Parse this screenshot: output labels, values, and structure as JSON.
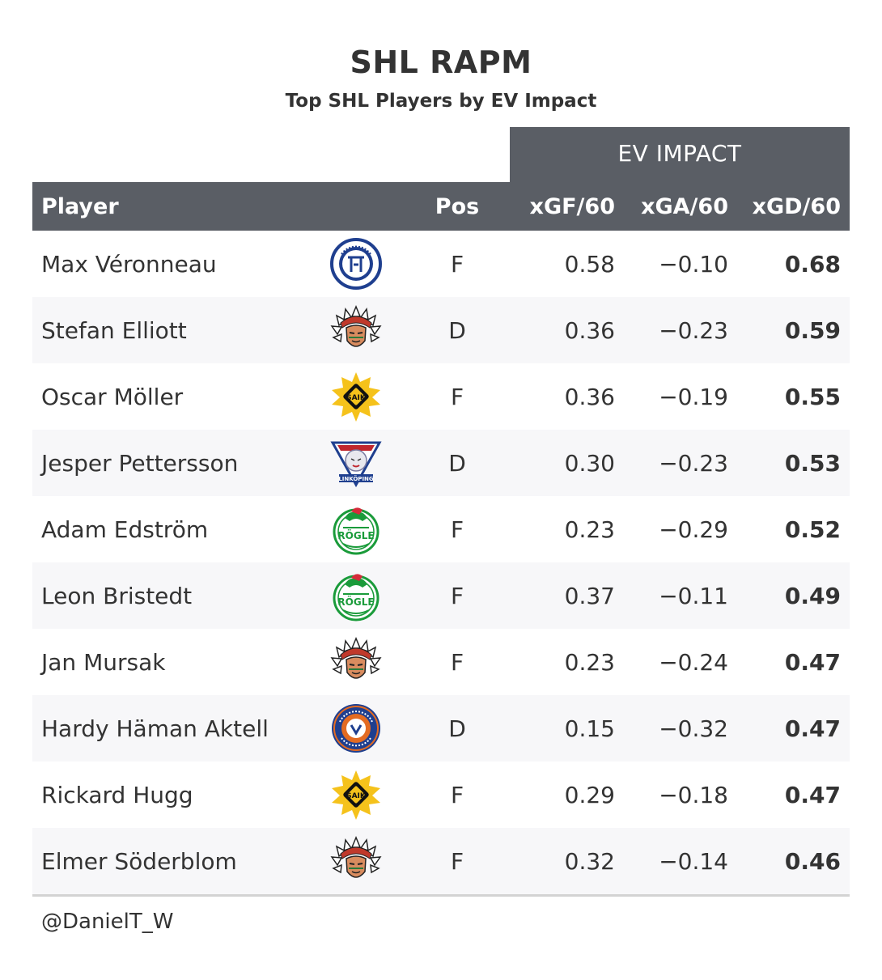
{
  "title": "SHL RAPM",
  "subtitle": "Top SHL Players by EV Impact",
  "spanner_label": "EV IMPACT",
  "columns": {
    "player": "Player",
    "pos": "Pos",
    "xgf": "xGF/60",
    "xga": "xGA/60",
    "xgd": "xGD/60"
  },
  "rows": [
    {
      "player": "Max Véronneau",
      "team_logo": "leksand-logo",
      "pos": "F",
      "xgf": "0.58",
      "xga": "−0.10",
      "xgd": "0.68"
    },
    {
      "player": "Stefan Elliott",
      "team_logo": "frolunda-logo",
      "pos": "D",
      "xgf": "0.36",
      "xga": "−0.23",
      "xgd": "0.59"
    },
    {
      "player": "Oscar Möller",
      "team_logo": "skelleftea-logo",
      "pos": "F",
      "xgf": "0.36",
      "xga": "−0.19",
      "xgd": "0.55"
    },
    {
      "player": "Jesper Pettersson",
      "team_logo": "linkoping-logo",
      "pos": "D",
      "xgf": "0.30",
      "xga": "−0.23",
      "xgd": "0.53"
    },
    {
      "player": "Adam Edström",
      "team_logo": "rogle-logo",
      "pos": "F",
      "xgf": "0.23",
      "xga": "−0.29",
      "xgd": "0.52"
    },
    {
      "player": "Leon Bristedt",
      "team_logo": "rogle-logo",
      "pos": "F",
      "xgf": "0.37",
      "xga": "−0.11",
      "xgd": "0.49"
    },
    {
      "player": "Jan Mursak",
      "team_logo": "frolunda-logo",
      "pos": "F",
      "xgf": "0.23",
      "xga": "−0.24",
      "xgd": "0.47"
    },
    {
      "player": "Hardy Häman Aktell",
      "team_logo": "vaxjo-logo",
      "pos": "D",
      "xgf": "0.15",
      "xga": "−0.32",
      "xgd": "0.47"
    },
    {
      "player": "Rickard Hugg",
      "team_logo": "skelleftea-logo",
      "pos": "F",
      "xgf": "0.29",
      "xga": "−0.18",
      "xgd": "0.47"
    },
    {
      "player": "Elmer Söderblom",
      "team_logo": "frolunda-logo",
      "pos": "F",
      "xgf": "0.32",
      "xga": "−0.14",
      "xgd": "0.46"
    }
  ],
  "credit": "@DanielT_W",
  "colors": {
    "header_bg": "#5a5e65",
    "alt_row_bg": "#f7f7f9",
    "text": "#333333",
    "rule": "#d3d3d3"
  }
}
